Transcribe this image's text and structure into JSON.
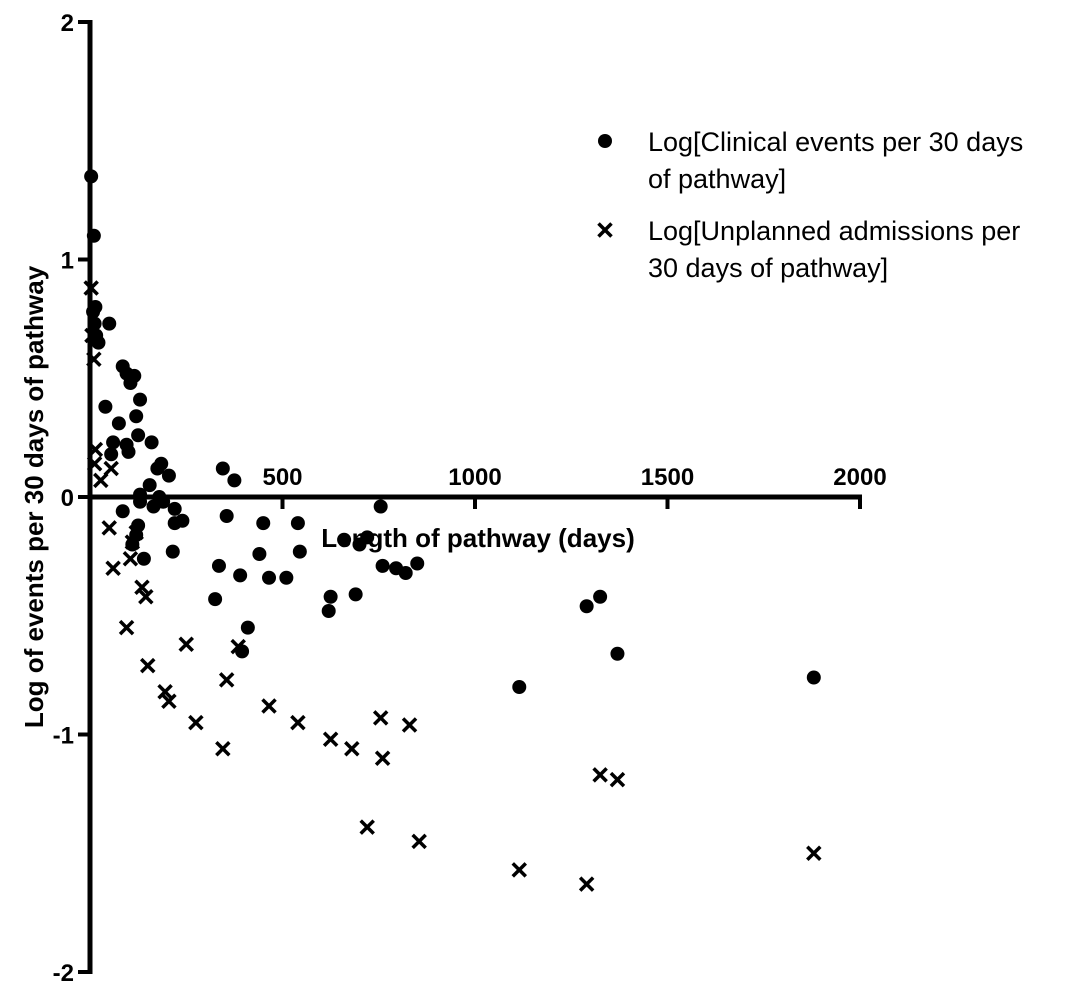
{
  "chart_data": {
    "type": "scatter",
    "title": "",
    "xlabel": "Length of pathway (days)",
    "ylabel": "Log of events per 30 days of pathway",
    "xlim": [
      0,
      2000
    ],
    "ylim": [
      -2,
      2
    ],
    "x_ticks": [
      500,
      1000,
      1500,
      2000
    ],
    "x_tick_labels": [
      "500",
      "1000",
      "1500",
      "2000"
    ],
    "y_ticks": [
      2,
      1,
      0,
      -1,
      -2
    ],
    "y_tick_labels": [
      "2",
      "1",
      "0",
      "-1",
      "-2"
    ],
    "grid": false,
    "legend_position": "top-right",
    "series": [
      {
        "name": "Log[Clinical events per 30 days of pathway]",
        "legend_lines": [
          "Log[Clinical events per 30 days",
          "of pathway]"
        ],
        "marker": "circle",
        "color": "#000000",
        "points": [
          [
            3,
            1.35
          ],
          [
            10,
            1.1
          ],
          [
            8,
            0.78
          ],
          [
            12,
            0.73
          ],
          [
            14,
            0.8
          ],
          [
            16,
            0.68
          ],
          [
            22,
            0.65
          ],
          [
            50,
            0.73
          ],
          [
            40,
            0.38
          ],
          [
            60,
            0.23
          ],
          [
            55,
            0.18
          ],
          [
            75,
            0.31
          ],
          [
            95,
            0.22
          ],
          [
            100,
            0.19
          ],
          [
            85,
            0.55
          ],
          [
            95,
            0.52
          ],
          [
            115,
            0.51
          ],
          [
            130,
            0.41
          ],
          [
            105,
            0.48
          ],
          [
            120,
            0.34
          ],
          [
            125,
            0.26
          ],
          [
            130,
            0.01
          ],
          [
            130,
            -0.02
          ],
          [
            125,
            -0.12
          ],
          [
            140,
            -0.26
          ],
          [
            155,
            0.05
          ],
          [
            160,
            0.23
          ],
          [
            165,
            -0.04
          ],
          [
            175,
            0.12
          ],
          [
            185,
            0.14
          ],
          [
            180,
            0.0
          ],
          [
            190,
            -0.02
          ],
          [
            205,
            0.09
          ],
          [
            215,
            -0.23
          ],
          [
            220,
            -0.05
          ],
          [
            220,
            -0.11
          ],
          [
            240,
            -0.1
          ],
          [
            120,
            -0.16
          ],
          [
            110,
            -0.2
          ],
          [
            85,
            -0.06
          ],
          [
            345,
            0.12
          ],
          [
            355,
            -0.08
          ],
          [
            375,
            0.07
          ],
          [
            335,
            -0.29
          ],
          [
            390,
            -0.33
          ],
          [
            395,
            -0.65
          ],
          [
            410,
            -0.55
          ],
          [
            440,
            -0.24
          ],
          [
            450,
            -0.11
          ],
          [
            465,
            -0.34
          ],
          [
            510,
            -0.34
          ],
          [
            540,
            -0.11
          ],
          [
            545,
            -0.23
          ],
          [
            620,
            -0.48
          ],
          [
            625,
            -0.42
          ],
          [
            660,
            -0.18
          ],
          [
            700,
            -0.2
          ],
          [
            690,
            -0.41
          ],
          [
            720,
            -0.17
          ],
          [
            755,
            -0.04
          ],
          [
            760,
            -0.29
          ],
          [
            795,
            -0.3
          ],
          [
            820,
            -0.32
          ],
          [
            850,
            -0.28
          ],
          [
            325,
            -0.43
          ],
          [
            1115,
            -0.8
          ],
          [
            1290,
            -0.46
          ],
          [
            1325,
            -0.42
          ],
          [
            1370,
            -0.66
          ],
          [
            1880,
            -0.76
          ]
        ]
      },
      {
        "name": "Log[Unplanned admissions per 30 days of pathway]",
        "legend_lines": [
          "Log[Unplanned admissions per",
          "30 days of pathway]"
        ],
        "marker": "cross",
        "color": "#000000",
        "points": [
          [
            3,
            0.88
          ],
          [
            5,
            0.68
          ],
          [
            10,
            0.58
          ],
          [
            14,
            0.2
          ],
          [
            12,
            0.14
          ],
          [
            28,
            0.07
          ],
          [
            55,
            0.12
          ],
          [
            50,
            -0.13
          ],
          [
            60,
            -0.3
          ],
          [
            95,
            -0.55
          ],
          [
            105,
            -0.26
          ],
          [
            110,
            -0.19
          ],
          [
            120,
            -0.15
          ],
          [
            135,
            -0.38
          ],
          [
            145,
            -0.42
          ],
          [
            150,
            -0.71
          ],
          [
            195,
            -0.82
          ],
          [
            205,
            -0.86
          ],
          [
            250,
            -0.62
          ],
          [
            275,
            -0.95
          ],
          [
            345,
            -1.06
          ],
          [
            355,
            -0.77
          ],
          [
            385,
            -0.63
          ],
          [
            465,
            -0.88
          ],
          [
            540,
            -0.95
          ],
          [
            625,
            -1.02
          ],
          [
            680,
            -1.06
          ],
          [
            720,
            -1.39
          ],
          [
            755,
            -0.93
          ],
          [
            760,
            -1.1
          ],
          [
            830,
            -0.96
          ],
          [
            855,
            -1.45
          ],
          [
            1115,
            -1.57
          ],
          [
            1290,
            -1.63
          ],
          [
            1325,
            -1.17
          ],
          [
            1370,
            -1.19
          ],
          [
            1880,
            -1.5
          ]
        ]
      }
    ]
  }
}
